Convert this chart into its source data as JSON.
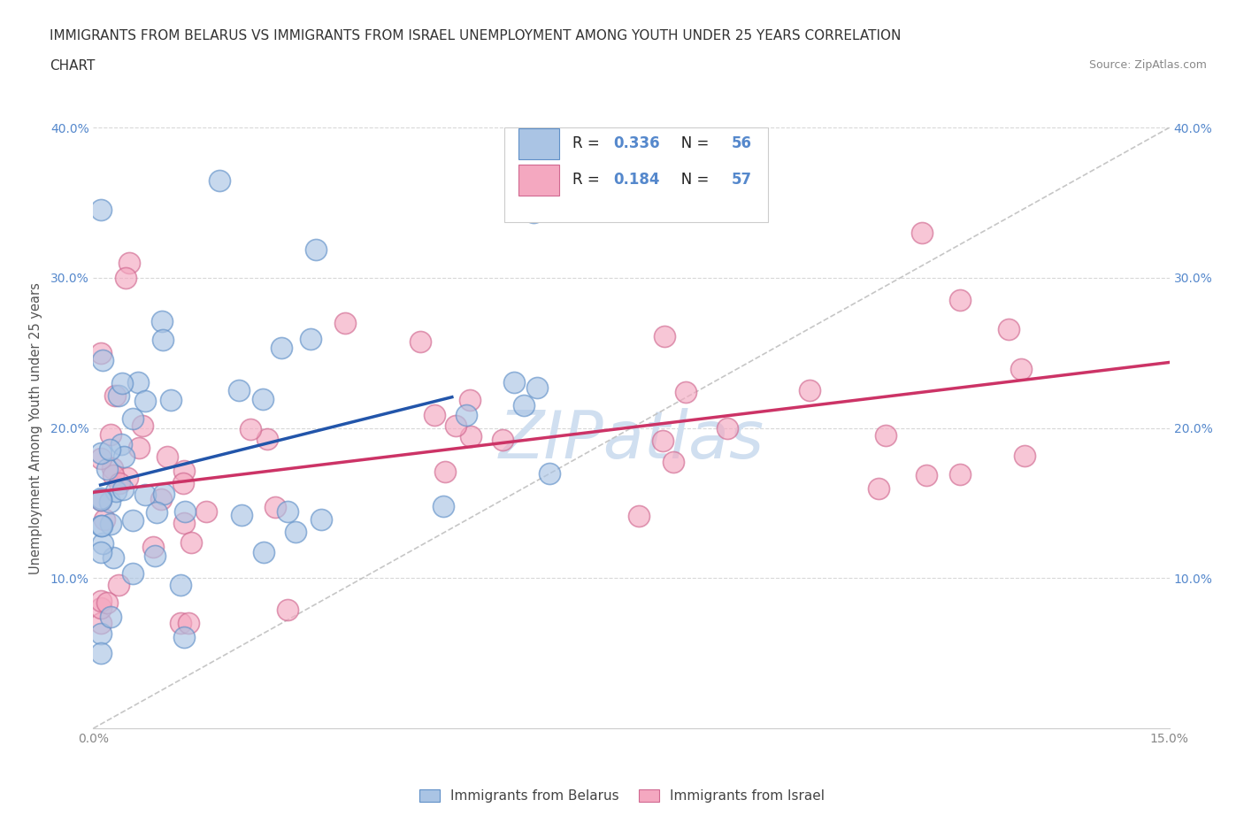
{
  "title_line1": "IMMIGRANTS FROM BELARUS VS IMMIGRANTS FROM ISRAEL UNEMPLOYMENT AMONG YOUTH UNDER 25 YEARS CORRELATION",
  "title_line2": "CHART",
  "source_text": "Source: ZipAtlas.com",
  "ylabel": "Unemployment Among Youth under 25 years",
  "xlim": [
    0.0,
    0.15
  ],
  "ylim": [
    0.0,
    0.4
  ],
  "belarus_R": 0.336,
  "belarus_N": 56,
  "israel_R": 0.184,
  "israel_N": 57,
  "belarus_color": "#aac4e4",
  "belarus_edge": "#6090c8",
  "israel_color": "#f4a8c0",
  "israel_edge": "#d06890",
  "belarus_trend_color": "#2255aa",
  "israel_trend_color": "#cc3366",
  "diagonal_color": "#c0c0c0",
  "watermark_color": "#d0dff0",
  "background_color": "#ffffff",
  "grid_color": "#d8d8d8",
  "tick_color": "#5588cc",
  "text_color": "#404040"
}
